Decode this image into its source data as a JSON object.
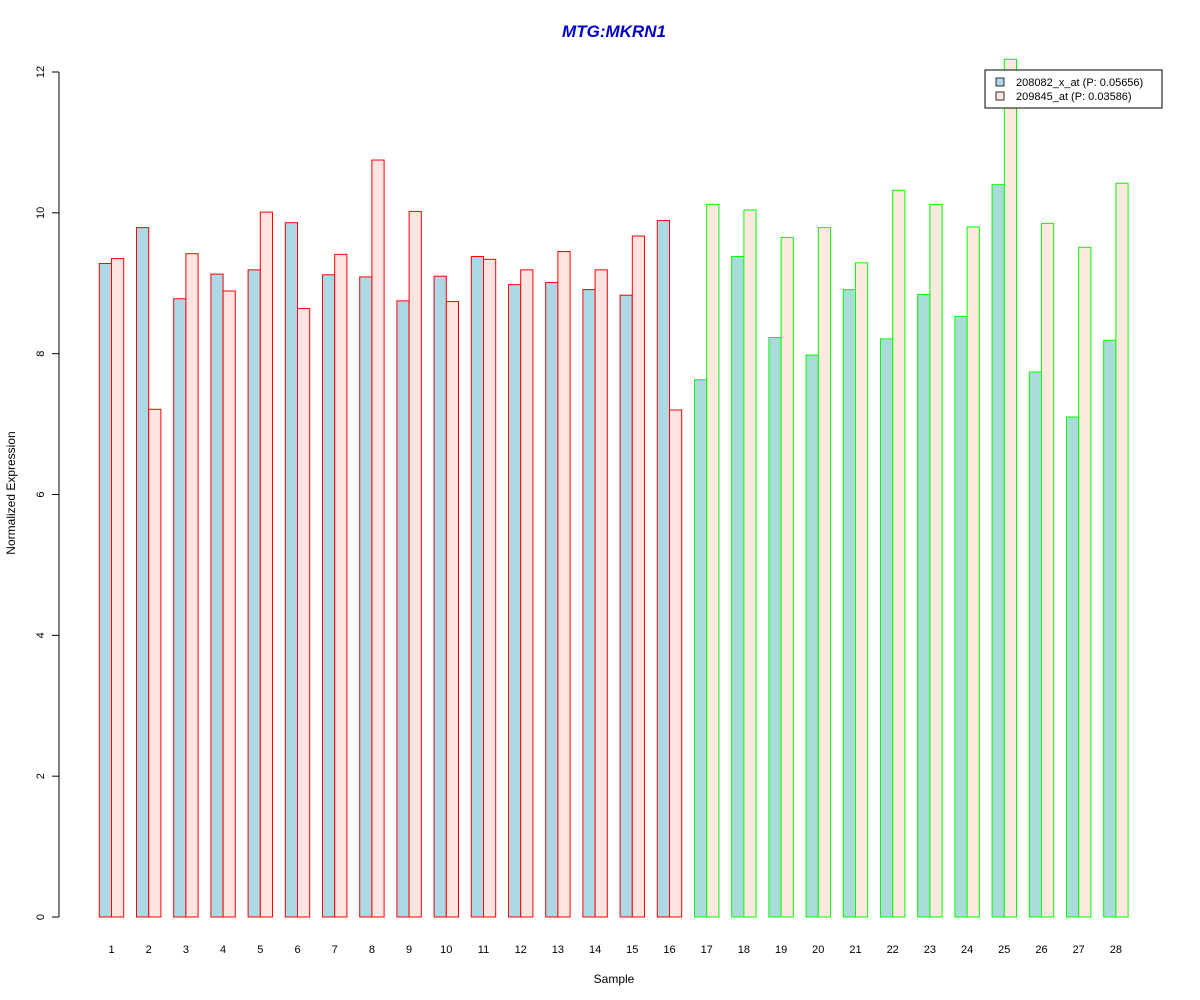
{
  "chart_data": {
    "type": "bar",
    "title": "MTG:MKRN1",
    "xlabel": "Sample",
    "ylabel": "Normalized Expression",
    "ylim": [
      0,
      12
    ],
    "yticks": [
      0,
      2,
      4,
      6,
      8,
      10,
      12
    ],
    "categories": [
      "1",
      "2",
      "3",
      "4",
      "5",
      "6",
      "7",
      "8",
      "9",
      "10",
      "11",
      "12",
      "13",
      "14",
      "15",
      "16",
      "17",
      "18",
      "19",
      "20",
      "21",
      "22",
      "23",
      "24",
      "25",
      "26",
      "27",
      "28"
    ],
    "series": [
      {
        "name": "208082_x_at (P: 0.05656)",
        "values": [
          9.28,
          9.79,
          8.78,
          9.13,
          9.19,
          9.86,
          9.12,
          9.09,
          8.75,
          9.1,
          9.38,
          8.98,
          9.01,
          8.91,
          8.83,
          9.89,
          7.63,
          9.38,
          8.23,
          7.98,
          8.91,
          8.21,
          8.84,
          8.53,
          10.4,
          7.74,
          7.1,
          8.19
        ]
      },
      {
        "name": "209845_at (P: 0.03586)",
        "values": [
          9.35,
          7.21,
          9.42,
          8.89,
          10.01,
          8.64,
          9.41,
          10.75,
          10.02,
          8.74,
          9.34,
          9.19,
          9.45,
          9.19,
          9.67,
          7.2,
          10.12,
          10.04,
          9.65,
          9.79,
          9.29,
          10.32,
          10.12,
          9.8,
          12.18,
          9.85,
          9.51,
          10.42
        ]
      }
    ],
    "series_fill_colors": [
      "#add8e6",
      "#ffe4e1"
    ],
    "series_fill_colors_group2": [
      "#a8dcd8",
      "#fbeadd"
    ],
    "group_border_colors": [
      "#ff0000",
      "#00ff00"
    ],
    "group_sizes": [
      16,
      12
    ],
    "title_color": "#0000cc",
    "legend_position": "top-right",
    "grid": false
  }
}
